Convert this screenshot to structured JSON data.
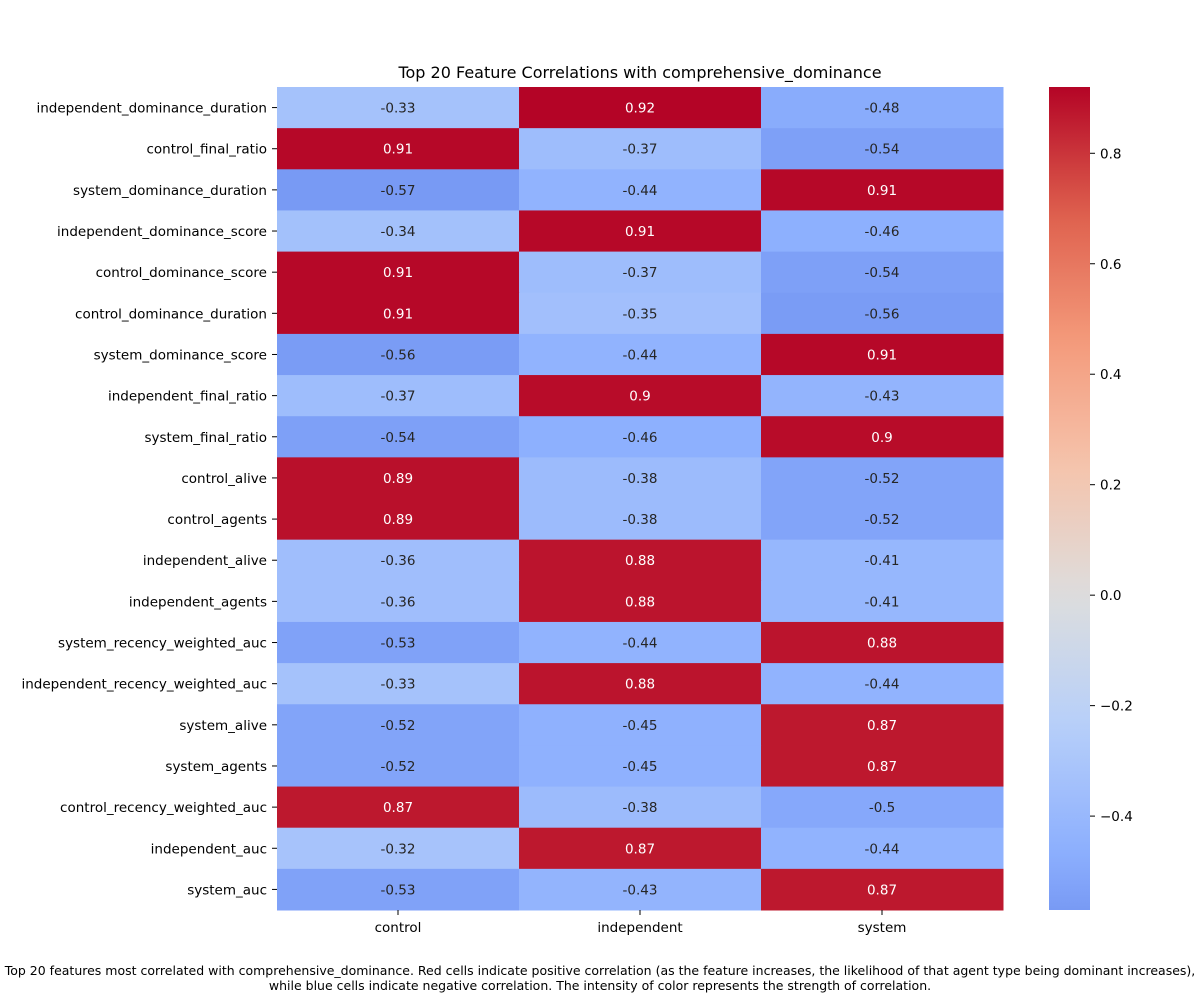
{
  "caption": {
    "line1": "Top 20 features most correlated with comprehensive_dominance. Red cells indicate positive correlation (as the feature increases, the likelihood of that agent type being dominant increases),",
    "line2": "while blue cells indicate negative correlation. The intensity of color represents the strength of correlation."
  },
  "chart_data": {
    "type": "heatmap",
    "title": "Top 20 Feature Correlations with comprehensive_dominance",
    "xlabel": "",
    "ylabel": "",
    "colormap": "coolwarm",
    "center": 0,
    "vmin": -0.57,
    "vmax": 0.92,
    "colorbar_ticks": [
      0.8,
      0.6,
      0.4,
      0.2,
      0.0,
      -0.2,
      -0.4
    ],
    "colorbar_tick_labels": [
      "0.8",
      "0.6",
      "0.4",
      "0.2",
      "0.0",
      "−0.2",
      "−0.4"
    ],
    "columns": [
      "control",
      "independent",
      "system"
    ],
    "rows": [
      {
        "label": "independent_dominance_duration",
        "values": [
          -0.33,
          0.92,
          -0.48
        ],
        "labels": [
          "-0.33",
          "0.92",
          "-0.48"
        ]
      },
      {
        "label": "control_final_ratio",
        "values": [
          0.91,
          -0.37,
          -0.54
        ],
        "labels": [
          "0.91",
          "-0.37",
          "-0.54"
        ]
      },
      {
        "label": "system_dominance_duration",
        "values": [
          -0.57,
          -0.44,
          0.91
        ],
        "labels": [
          "-0.57",
          "-0.44",
          "0.91"
        ]
      },
      {
        "label": "independent_dominance_score",
        "values": [
          -0.34,
          0.91,
          -0.46
        ],
        "labels": [
          "-0.34",
          "0.91",
          "-0.46"
        ]
      },
      {
        "label": "control_dominance_score",
        "values": [
          0.91,
          -0.37,
          -0.54
        ],
        "labels": [
          "0.91",
          "-0.37",
          "-0.54"
        ]
      },
      {
        "label": "control_dominance_duration",
        "values": [
          0.91,
          -0.35,
          -0.56
        ],
        "labels": [
          "0.91",
          "-0.35",
          "-0.56"
        ]
      },
      {
        "label": "system_dominance_score",
        "values": [
          -0.56,
          -0.44,
          0.91
        ],
        "labels": [
          "-0.56",
          "-0.44",
          "0.91"
        ]
      },
      {
        "label": "independent_final_ratio",
        "values": [
          -0.37,
          0.9,
          -0.43
        ],
        "labels": [
          "-0.37",
          "0.9",
          "-0.43"
        ]
      },
      {
        "label": "system_final_ratio",
        "values": [
          -0.54,
          -0.46,
          0.9
        ],
        "labels": [
          "-0.54",
          "-0.46",
          "0.9"
        ]
      },
      {
        "label": "control_alive",
        "values": [
          0.89,
          -0.38,
          -0.52
        ],
        "labels": [
          "0.89",
          "-0.38",
          "-0.52"
        ]
      },
      {
        "label": "control_agents",
        "values": [
          0.89,
          -0.38,
          -0.52
        ],
        "labels": [
          "0.89",
          "-0.38",
          "-0.52"
        ]
      },
      {
        "label": "independent_alive",
        "values": [
          -0.36,
          0.88,
          -0.41
        ],
        "labels": [
          "-0.36",
          "0.88",
          "-0.41"
        ]
      },
      {
        "label": "independent_agents",
        "values": [
          -0.36,
          0.88,
          -0.41
        ],
        "labels": [
          "-0.36",
          "0.88",
          "-0.41"
        ]
      },
      {
        "label": "system_recency_weighted_auc",
        "values": [
          -0.53,
          -0.44,
          0.88
        ],
        "labels": [
          "-0.53",
          "-0.44",
          "0.88"
        ]
      },
      {
        "label": "independent_recency_weighted_auc",
        "values": [
          -0.33,
          0.88,
          -0.44
        ],
        "labels": [
          "-0.33",
          "0.88",
          "-0.44"
        ]
      },
      {
        "label": "system_alive",
        "values": [
          -0.52,
          -0.45,
          0.87
        ],
        "labels": [
          "-0.52",
          "-0.45",
          "0.87"
        ]
      },
      {
        "label": "system_agents",
        "values": [
          -0.52,
          -0.45,
          0.87
        ],
        "labels": [
          "-0.52",
          "-0.45",
          "0.87"
        ]
      },
      {
        "label": "control_recency_weighted_auc",
        "values": [
          0.87,
          -0.38,
          -0.5
        ],
        "labels": [
          "0.87",
          "-0.38",
          "-0.5"
        ]
      },
      {
        "label": "independent_auc",
        "values": [
          -0.32,
          0.87,
          -0.44
        ],
        "labels": [
          "-0.32",
          "0.87",
          "-0.44"
        ]
      },
      {
        "label": "system_auc",
        "values": [
          -0.53,
          -0.43,
          0.87
        ],
        "labels": [
          "-0.53",
          "-0.43",
          "0.87"
        ]
      }
    ]
  }
}
